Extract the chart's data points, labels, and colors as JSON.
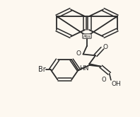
{
  "background_color": "#fdf8f0",
  "line_color": "#2a2a2a",
  "bond_width": 1.3,
  "abs_label": "Abs",
  "br_label": "Br",
  "hn_label": "HN",
  "oh_label": "OH",
  "font_size": 6.5,
  "dpi": 100
}
